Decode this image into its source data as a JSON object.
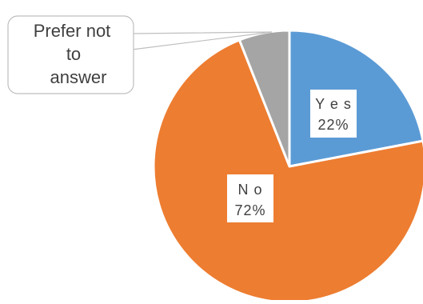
{
  "chart_data": {
    "type": "pie",
    "title": "",
    "slices": [
      {
        "label": "Yes",
        "value": 22,
        "display_label": "Y e s",
        "percent_label": "22%",
        "color": "#5B9BD5"
      },
      {
        "label": "No",
        "value": 72,
        "display_label": "N o",
        "percent_label": "72%",
        "color": "#ED7D31"
      },
      {
        "label": "Prefer not to answer",
        "value": 6,
        "display_label_lines": [
          "Prefer not",
          "to",
          "answer"
        ],
        "color": "#A5A5A5"
      }
    ],
    "start_angle": "12 o'clock",
    "direction": "clockwise",
    "legend": "none",
    "label_style": "boxed data labels; callout for small slice"
  }
}
